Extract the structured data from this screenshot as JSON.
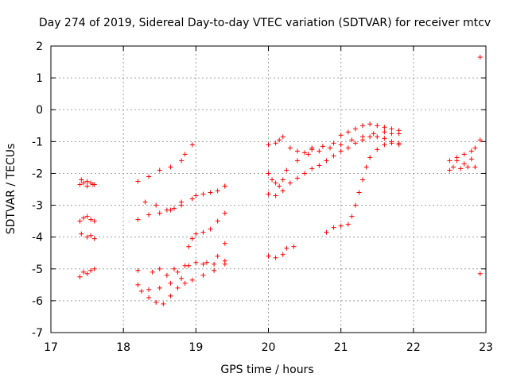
{
  "chart_data": {
    "type": "scatter",
    "title": "Day 274 of 2019, Sidereal Day-to-day VTEC variation (SDTVAR) for receiver mtcv",
    "xlabel": "GPS time / hours",
    "ylabel": "SDTVAR / TECUs",
    "xlim": [
      17,
      23
    ],
    "ylim": [
      -7,
      2
    ],
    "x_ticks": [
      17,
      18,
      19,
      20,
      21,
      22,
      23
    ],
    "y_ticks": [
      -7,
      -6,
      -5,
      -4,
      -3,
      -2,
      -1,
      0,
      1,
      2
    ],
    "grid": true,
    "marker": "+",
    "color": "#ff0000",
    "series": [
      {
        "points": [
          [
            17.4,
            -2.35
          ],
          [
            17.45,
            -2.3
          ],
          [
            17.5,
            -2.4
          ],
          [
            17.55,
            -2.3
          ],
          [
            17.6,
            -2.35
          ],
          [
            17.42,
            -2.2
          ],
          [
            17.5,
            -2.25
          ],
          [
            17.58,
            -2.35
          ]
        ]
      },
      {
        "points": [
          [
            17.4,
            -3.5
          ],
          [
            17.45,
            -3.4
          ],
          [
            17.5,
            -3.35
          ],
          [
            17.55,
            -3.45
          ],
          [
            17.6,
            -3.5
          ],
          [
            17.42,
            -3.9
          ],
          [
            17.5,
            -4.0
          ],
          [
            17.55,
            -3.95
          ],
          [
            17.6,
            -4.05
          ]
        ]
      },
      {
        "points": [
          [
            17.4,
            -5.25
          ],
          [
            17.45,
            -5.1
          ],
          [
            17.5,
            -5.15
          ],
          [
            17.55,
            -5.05
          ],
          [
            17.6,
            -5.0
          ]
        ]
      },
      {
        "points": [
          [
            18.2,
            -2.25
          ],
          [
            18.35,
            -2.1
          ],
          [
            18.5,
            -1.9
          ],
          [
            18.65,
            -1.8
          ],
          [
            18.8,
            -1.6
          ],
          [
            18.85,
            -1.4
          ],
          [
            18.95,
            -1.1
          ]
        ]
      },
      {
        "points": [
          [
            18.3,
            -2.9
          ],
          [
            18.45,
            -3.0
          ],
          [
            18.6,
            -3.15
          ],
          [
            18.7,
            -3.1
          ],
          [
            18.8,
            -2.9
          ],
          [
            19.0,
            -2.7
          ],
          [
            19.2,
            -2.6
          ],
          [
            19.4,
            -2.4
          ]
        ]
      },
      {
        "points": [
          [
            18.2,
            -3.45
          ],
          [
            18.35,
            -3.3
          ],
          [
            18.5,
            -3.25
          ],
          [
            18.65,
            -3.15
          ],
          [
            18.8,
            -3.0
          ],
          [
            18.95,
            -2.8
          ],
          [
            19.1,
            -2.65
          ],
          [
            19.3,
            -2.55
          ],
          [
            19.4,
            -2.4
          ]
        ]
      },
      {
        "points": [
          [
            18.9,
            -4.3
          ],
          [
            18.95,
            -4.05
          ],
          [
            19.0,
            -3.9
          ],
          [
            19.1,
            -3.85
          ],
          [
            19.2,
            -3.75
          ],
          [
            19.3,
            -3.5
          ],
          [
            19.4,
            -3.25
          ]
        ]
      },
      {
        "points": [
          [
            18.5,
            -5.0
          ],
          [
            18.7,
            -5.0
          ],
          [
            18.85,
            -4.9
          ],
          [
            19.0,
            -4.8
          ],
          [
            19.15,
            -4.8
          ],
          [
            19.3,
            -4.6
          ],
          [
            19.4,
            -4.2
          ]
        ]
      },
      {
        "points": [
          [
            18.2,
            -5.05
          ],
          [
            18.4,
            -5.1
          ],
          [
            18.6,
            -5.2
          ],
          [
            18.75,
            -5.1
          ],
          [
            18.9,
            -4.9
          ],
          [
            19.1,
            -4.85
          ],
          [
            19.25,
            -4.85
          ],
          [
            19.4,
            -4.75
          ]
        ]
      },
      {
        "points": [
          [
            18.2,
            -5.5
          ],
          [
            18.35,
            -5.65
          ],
          [
            18.5,
            -5.6
          ],
          [
            18.65,
            -5.45
          ],
          [
            18.8,
            -5.3
          ],
          [
            18.95,
            -5.35
          ],
          [
            19.1,
            -5.2
          ],
          [
            19.25,
            -5.05
          ],
          [
            19.4,
            -4.85
          ]
        ]
      },
      {
        "points": [
          [
            18.25,
            -5.7
          ],
          [
            18.35,
            -5.9
          ],
          [
            18.45,
            -6.05
          ],
          [
            18.55,
            -6.1
          ],
          [
            18.65,
            -5.85
          ],
          [
            18.75,
            -5.6
          ],
          [
            18.85,
            -5.45
          ]
        ]
      },
      {
        "points": [
          [
            20.0,
            -1.1
          ],
          [
            20.1,
            -1.05
          ],
          [
            20.15,
            -0.95
          ],
          [
            20.2,
            -0.85
          ],
          [
            20.3,
            -1.2
          ],
          [
            20.4,
            -1.3
          ],
          [
            20.5,
            -1.35
          ],
          [
            20.6,
            -1.25
          ]
        ]
      },
      {
        "points": [
          [
            20.0,
            -2.0
          ],
          [
            20.05,
            -2.2
          ],
          [
            20.1,
            -2.3
          ],
          [
            20.15,
            -2.4
          ],
          [
            20.2,
            -2.2
          ]
        ]
      },
      {
        "points": [
          [
            20.0,
            -2.65
          ],
          [
            20.1,
            -2.7
          ],
          [
            20.2,
            -2.55
          ],
          [
            20.3,
            -2.3
          ],
          [
            20.4,
            -2.15
          ],
          [
            20.5,
            -2.0
          ],
          [
            20.6,
            -1.85
          ],
          [
            20.7,
            -1.75
          ],
          [
            20.8,
            -1.6
          ],
          [
            20.9,
            -1.45
          ],
          [
            21.0,
            -1.3
          ],
          [
            21.1,
            -1.2
          ],
          [
            21.2,
            -1.05
          ],
          [
            21.3,
            -0.95
          ],
          [
            21.4,
            -0.85
          ],
          [
            21.5,
            -0.85
          ],
          [
            21.6,
            -0.9
          ],
          [
            21.7,
            -1.0
          ],
          [
            21.8,
            -1.05
          ]
        ]
      },
      {
        "points": [
          [
            20.25,
            -1.9
          ],
          [
            20.4,
            -1.6
          ],
          [
            20.55,
            -1.4
          ],
          [
            20.7,
            -1.3
          ],
          [
            20.85,
            -1.2
          ],
          [
            21.0,
            -1.1
          ],
          [
            21.15,
            -0.95
          ],
          [
            21.3,
            -0.85
          ],
          [
            21.45,
            -0.75
          ],
          [
            21.6,
            -0.7
          ],
          [
            21.7,
            -0.75
          ],
          [
            21.8,
            -0.75
          ]
        ]
      },
      {
        "points": [
          [
            20.6,
            -1.2
          ],
          [
            20.75,
            -1.15
          ],
          [
            20.9,
            -1.05
          ],
          [
            21.0,
            -0.8
          ],
          [
            21.1,
            -0.7
          ],
          [
            21.2,
            -0.6
          ],
          [
            21.3,
            -0.5
          ],
          [
            21.4,
            -0.45
          ],
          [
            21.5,
            -0.5
          ],
          [
            21.6,
            -0.55
          ],
          [
            21.7,
            -0.6
          ],
          [
            21.8,
            -0.65
          ]
        ]
      },
      {
        "points": [
          [
            20.0,
            -4.6
          ],
          [
            20.1,
            -4.65
          ],
          [
            20.2,
            -4.55
          ],
          [
            20.25,
            -4.35
          ],
          [
            20.35,
            -4.3
          ]
        ]
      },
      {
        "points": [
          [
            20.8,
            -3.85
          ],
          [
            20.9,
            -3.7
          ],
          [
            21.0,
            -3.65
          ],
          [
            21.1,
            -3.6
          ],
          [
            21.15,
            -3.35
          ],
          [
            21.2,
            -3.0
          ],
          [
            21.25,
            -2.6
          ],
          [
            21.3,
            -2.2
          ],
          [
            21.35,
            -1.8
          ],
          [
            21.4,
            -1.5
          ],
          [
            21.5,
            -1.25
          ],
          [
            21.6,
            -1.1
          ],
          [
            21.7,
            -1.05
          ],
          [
            21.8,
            -1.1
          ]
        ]
      },
      {
        "points": [
          [
            22.5,
            -1.6
          ],
          [
            22.6,
            -1.5
          ],
          [
            22.7,
            -1.4
          ],
          [
            22.8,
            -1.3
          ],
          [
            22.85,
            -1.2
          ],
          [
            22.55,
            -1.8
          ],
          [
            22.65,
            -1.85
          ],
          [
            22.75,
            -1.8
          ],
          [
            22.85,
            -1.8
          ],
          [
            22.5,
            -1.9
          ],
          [
            22.6,
            -1.6
          ],
          [
            22.7,
            -1.7
          ],
          [
            22.8,
            -1.55
          ]
        ]
      },
      {
        "points": [
          [
            22.92,
            1.65
          ],
          [
            22.92,
            -0.95
          ],
          [
            22.92,
            -5.15
          ]
        ]
      }
    ]
  }
}
